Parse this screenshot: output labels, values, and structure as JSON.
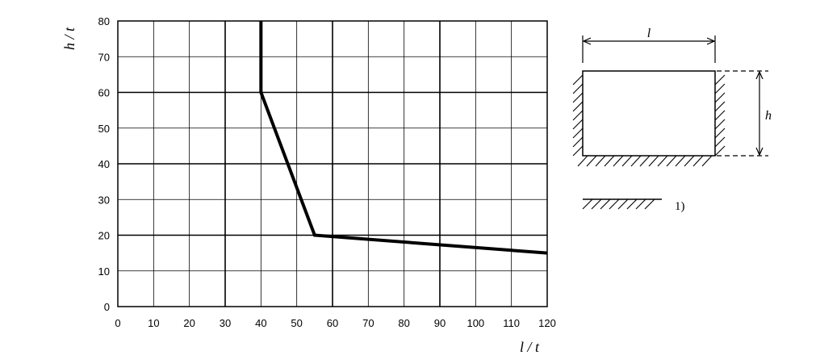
{
  "chart_data": {
    "type": "line",
    "xlabel": "l / t",
    "ylabel": "h / t",
    "xlim": [
      0,
      120
    ],
    "ylim": [
      0,
      80
    ],
    "x_ticks": [
      0,
      10,
      20,
      30,
      40,
      50,
      60,
      70,
      80,
      90,
      100,
      110,
      120
    ],
    "y_ticks": [
      0,
      10,
      20,
      30,
      40,
      50,
      60,
      70,
      80
    ],
    "x_tick_labels": [
      "0",
      "10",
      "20",
      "30",
      "40",
      "50",
      "60",
      "70",
      "80",
      "90",
      "100",
      "110",
      "120"
    ],
    "y_tick_labels": [
      "0",
      "10",
      "20",
      "30",
      "40",
      "50",
      "60",
      "70",
      "80"
    ],
    "grid": true,
    "series": [
      {
        "x": [
          40,
          40,
          55,
          120
        ],
        "y": [
          80,
          60,
          20,
          15
        ]
      }
    ]
  },
  "diagram": {
    "width_label": "l",
    "height_label": "h",
    "legend_note": "1)"
  },
  "colors": {
    "line": "#000000",
    "grid": "#000000",
    "background": "#ffffff"
  }
}
